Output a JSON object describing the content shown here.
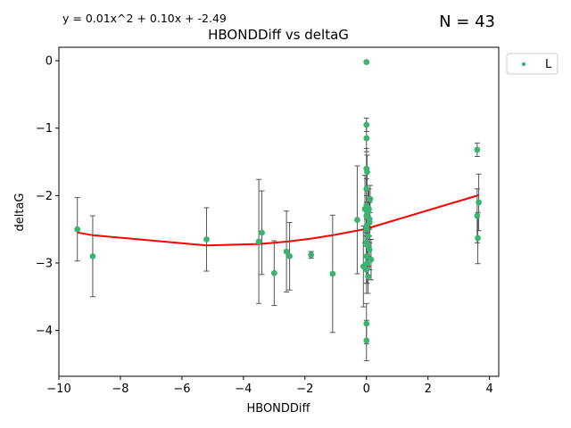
{
  "chart_data": {
    "type": "scatter",
    "title": "HBONDDiff vs deltaG",
    "xlabel": "HBONDDiff",
    "ylabel": "deltaG",
    "equation": "y = 0.01x^2 + 0.10x + -2.49",
    "n_label": "N = 43",
    "xlim": [
      -10,
      4.3
    ],
    "ylim": [
      -4.68,
      0.2
    ],
    "xticks": [
      -10,
      -8,
      -6,
      -4,
      -2,
      0,
      2,
      4
    ],
    "yticks": [
      0,
      -1,
      -2,
      -3,
      -4
    ],
    "xtick_labels": [
      "−10",
      "−8",
      "−6",
      "−4",
      "−2",
      "0",
      "2",
      "4"
    ],
    "ytick_labels": [
      "0",
      "−1",
      "−2",
      "−3",
      "−4"
    ],
    "grid": false,
    "legend": {
      "position": "outside-top-right",
      "entries": [
        "L"
      ]
    },
    "colors": {
      "points": "#3cb371",
      "errorbars": "#555555",
      "fit": "#ff0000"
    },
    "fit": {
      "coefficients": [
        0.01,
        0.1,
        -2.49
      ]
    },
    "points": [
      {
        "x": -9.4,
        "y": -2.5,
        "err": 0.47
      },
      {
        "x": -8.9,
        "y": -2.9,
        "err": 0.6
      },
      {
        "x": -5.2,
        "y": -2.65,
        "err": 0.47
      },
      {
        "x": -3.5,
        "y": -2.68,
        "err": 0.92
      },
      {
        "x": -3.4,
        "y": -2.55,
        "err": 0.62
      },
      {
        "x": -3.0,
        "y": -3.15,
        "err": 0.48
      },
      {
        "x": -2.6,
        "y": -2.83,
        "err": 0.6
      },
      {
        "x": -2.5,
        "y": -2.9,
        "err": 0.5
      },
      {
        "x": -1.8,
        "y": -2.88,
        "err": 0.05
      },
      {
        "x": -1.1,
        "y": -3.16,
        "err": 0.87
      },
      {
        "x": -0.3,
        "y": -2.36,
        "err": 0.8
      },
      {
        "x": -0.1,
        "y": -3.05,
        "err": 0.6
      },
      {
        "x": -0.05,
        "y": -2.2,
        "err": 0.5
      },
      {
        "x": 0.0,
        "y": -0.02,
        "err": 0.0
      },
      {
        "x": 0.0,
        "y": -0.95,
        "err": 0.1
      },
      {
        "x": 0.0,
        "y": -1.15,
        "err": 0.2
      },
      {
        "x": 0.0,
        "y": -1.6,
        "err": 0.3
      },
      {
        "x": 0.02,
        "y": -1.65,
        "err": 0.25
      },
      {
        "x": 0.0,
        "y": -2.15,
        "err": 0.4
      },
      {
        "x": 0.05,
        "y": -2.25,
        "err": 0.35
      },
      {
        "x": 0.0,
        "y": -2.3,
        "err": 0.3
      },
      {
        "x": 0.1,
        "y": -2.4,
        "err": 0.3
      },
      {
        "x": 0.0,
        "y": -2.5,
        "err": 0.4
      },
      {
        "x": 0.05,
        "y": -2.6,
        "err": 0.3
      },
      {
        "x": 0.0,
        "y": -2.7,
        "err": 0.35
      },
      {
        "x": 0.1,
        "y": -2.8,
        "err": 0.3
      },
      {
        "x": 0.0,
        "y": -2.9,
        "err": 0.4
      },
      {
        "x": 0.15,
        "y": -2.95,
        "err": 0.3
      },
      {
        "x": 0.0,
        "y": -3.1,
        "err": 0.35
      },
      {
        "x": 0.05,
        "y": -3.2,
        "err": 0.25
      },
      {
        "x": 0.0,
        "y": -3.9,
        "err": 0.3
      },
      {
        "x": 0.0,
        "y": -4.15,
        "err": 0.3
      },
      {
        "x": 0.0,
        "y": -1.9,
        "err": 0.3
      },
      {
        "x": 0.1,
        "y": -2.35,
        "err": 0.25
      },
      {
        "x": 0.02,
        "y": -3.0,
        "err": 0.3
      },
      {
        "x": 0.08,
        "y": -2.2,
        "err": 0.3
      },
      {
        "x": 0.12,
        "y": -2.05,
        "err": 0.2
      },
      {
        "x": 0.0,
        "y": -2.45,
        "err": 0.3
      },
      {
        "x": 3.6,
        "y": -1.32,
        "err": 0.1
      },
      {
        "x": 3.6,
        "y": -2.3,
        "err": 0.4
      },
      {
        "x": 3.65,
        "y": -2.1,
        "err": 0.42
      },
      {
        "x": 3.62,
        "y": -2.63,
        "err": 0.38
      },
      {
        "x": 0.05,
        "y": -2.75,
        "err": 0.3
      }
    ]
  }
}
